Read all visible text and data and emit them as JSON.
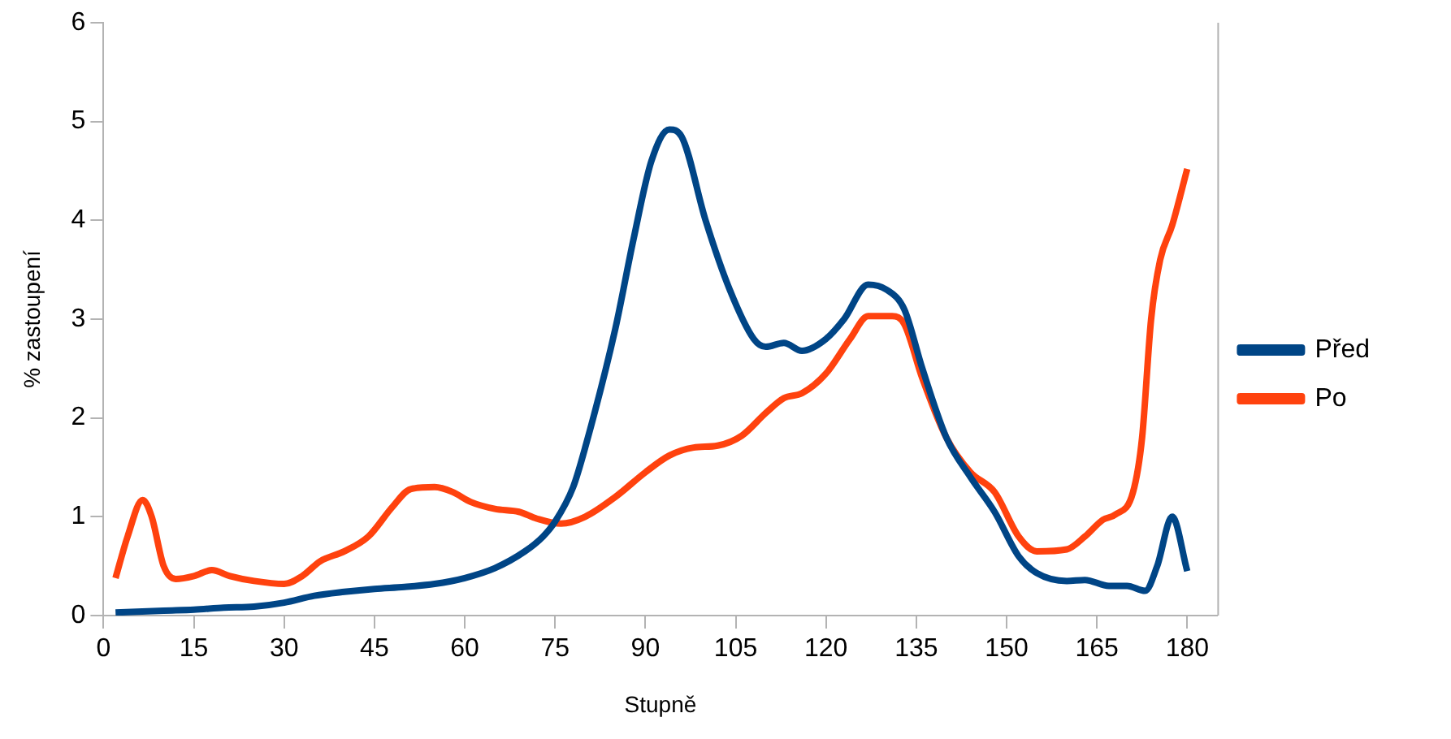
{
  "chart_data": {
    "type": "line",
    "xlabel": "Stupně",
    "ylabel": "% zastoupení",
    "xlim": [
      0,
      185
    ],
    "xticks": [
      0,
      15,
      30,
      45,
      60,
      75,
      90,
      105,
      120,
      135,
      150,
      165,
      180
    ],
    "ylim": [
      0,
      6
    ],
    "yticks": [
      0,
      1,
      2,
      3,
      4,
      5,
      6
    ],
    "grid": false,
    "legend": "right",
    "marker": "none",
    "line_style": "solid",
    "series": [
      {
        "name": "Před",
        "color": "#004586",
        "x": [
          2,
          10,
          15,
          20,
          25,
          30,
          35,
          40,
          45,
          50,
          55,
          60,
          65,
          70,
          73,
          75,
          78,
          80,
          85,
          88,
          91,
          94,
          96,
          100,
          104,
          108,
          110,
          113,
          116,
          120,
          123,
          127,
          130,
          133,
          136,
          140,
          144,
          148,
          152,
          155,
          160,
          163,
          167,
          170,
          173,
          175,
          177.5,
          180
        ],
        "values": [
          0.03,
          0.05,
          0.06,
          0.08,
          0.09,
          0.13,
          0.2,
          0.24,
          0.27,
          0.29,
          0.32,
          0.38,
          0.48,
          0.65,
          0.8,
          0.95,
          1.3,
          1.7,
          2.9,
          3.8,
          4.6,
          4.92,
          4.85,
          4.0,
          3.3,
          2.8,
          2.72,
          2.76,
          2.68,
          2.8,
          3.0,
          3.35,
          3.3,
          3.1,
          2.5,
          1.8,
          1.4,
          1.05,
          0.6,
          0.43,
          0.35,
          0.36,
          0.3,
          0.3,
          0.25,
          0.5,
          1.0,
          0.45
        ]
      },
      {
        "name": "Po",
        "color": "#ff420e",
        "x": [
          2,
          4,
          6.5,
          8,
          10,
          12,
          15,
          18,
          21,
          25,
          30,
          33,
          36,
          40,
          44,
          48,
          51,
          55,
          58,
          61,
          65,
          69,
          72,
          76,
          80,
          85,
          90,
          94,
          98,
          102,
          106,
          110,
          113,
          116,
          120,
          124,
          127,
          131,
          133,
          136,
          140,
          144,
          148,
          152,
          155,
          160,
          163,
          166,
          168,
          171,
          172.5,
          174,
          175.5,
          177.5,
          180
        ],
        "values": [
          0.38,
          0.8,
          1.17,
          1.0,
          0.5,
          0.37,
          0.4,
          0.46,
          0.4,
          0.35,
          0.32,
          0.4,
          0.55,
          0.65,
          0.8,
          1.1,
          1.28,
          1.3,
          1.25,
          1.15,
          1.08,
          1.05,
          0.98,
          0.93,
          1.0,
          1.2,
          1.45,
          1.62,
          1.7,
          1.72,
          1.82,
          2.05,
          2.2,
          2.25,
          2.45,
          2.8,
          3.03,
          3.03,
          2.95,
          2.4,
          1.8,
          1.45,
          1.25,
          0.8,
          0.65,
          0.67,
          0.8,
          0.97,
          1.02,
          1.25,
          1.8,
          3.0,
          3.6,
          3.95,
          4.52
        ]
      }
    ]
  }
}
